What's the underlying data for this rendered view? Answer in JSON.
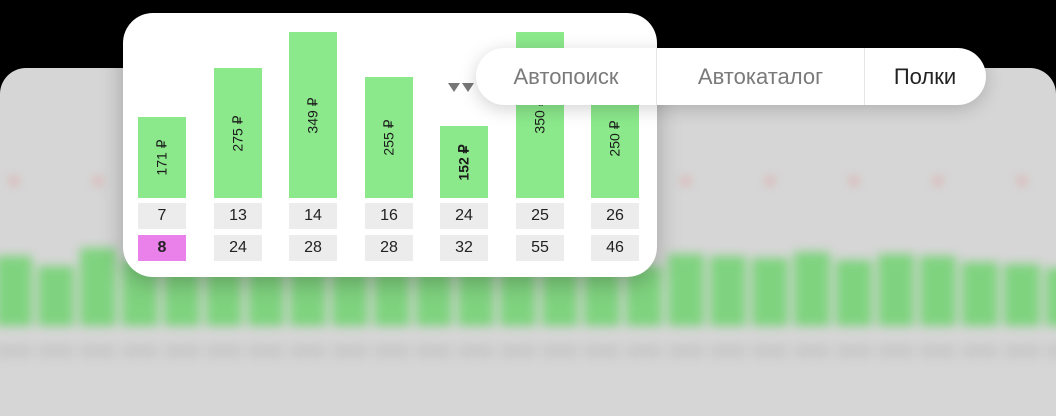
{
  "chart_data": {
    "type": "bar",
    "values": [
      171,
      275,
      349,
      255,
      152,
      350,
      250
    ],
    "bar_labels": [
      "171 ₽",
      "275 ₽",
      "349 ₽",
      "255 ₽",
      "152 ₽",
      "350 ₽",
      "250 ₽"
    ],
    "row1": [
      "7",
      "13",
      "14",
      "16",
      "24",
      "25",
      "26"
    ],
    "row2": [
      "8",
      "24",
      "28",
      "28",
      "32",
      "55",
      "46"
    ],
    "highlighted_bar_index": 4,
    "highlighted_row2_index": 0,
    "colors": {
      "bar": "#8be88b",
      "cell": "#ececec",
      "highlight": "#ea80ea"
    }
  },
  "tabs": [
    {
      "label": "Автопоиск",
      "active": false
    },
    {
      "label": "Автокаталог",
      "active": false
    },
    {
      "label": "Полки",
      "active": true
    }
  ]
}
